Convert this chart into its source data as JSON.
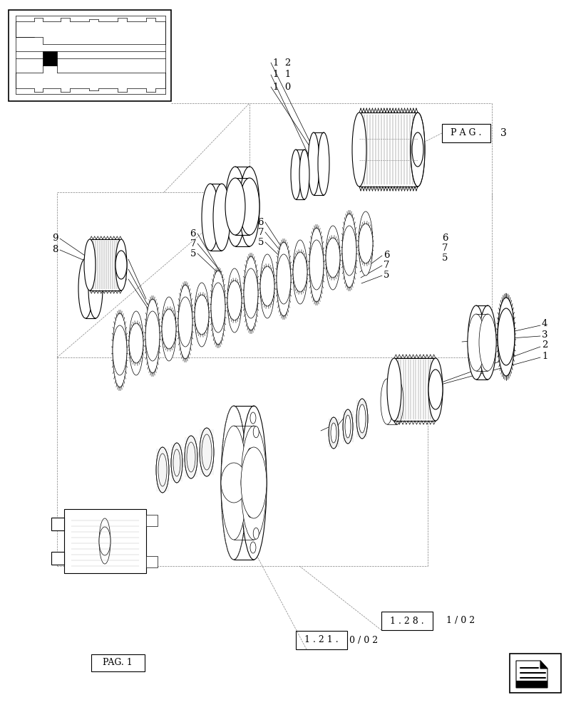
{
  "bg_color": "#ffffff",
  "lc": "#000000",
  "fig_w": 8.08,
  "fig_h": 10.0,
  "labels": {
    "pag3_box": "P A G .",
    "pag3_num": "3",
    "pag1_box": "PAG. 1",
    "ref128_box": "1 . 2 8 .",
    "ref128_ext": "1 / 0 2",
    "ref121_box": "1 . 2 1 .",
    "ref121_ext": "0 / 0 2"
  }
}
